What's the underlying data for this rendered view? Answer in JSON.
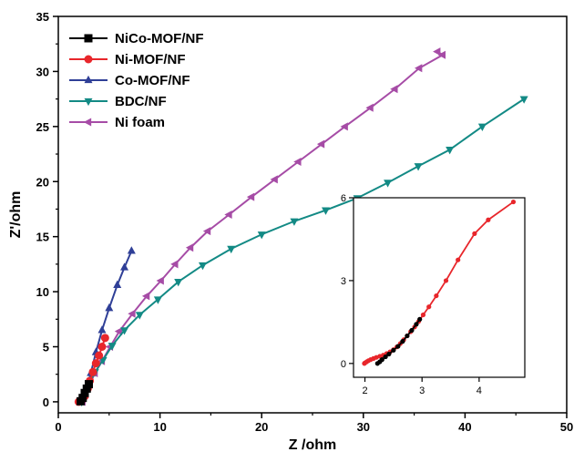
{
  "chart_data": {
    "type": "line",
    "xlabel": "Z /ohm",
    "ylabel": "Z'/ohm",
    "xlim": [
      0,
      50
    ],
    "ylim": [
      -1,
      35
    ],
    "xticks": [
      0,
      10,
      20,
      30,
      40,
      50
    ],
    "yticks": [
      0,
      5,
      10,
      15,
      20,
      25,
      30,
      35
    ],
    "legend_position": "top-left",
    "series": [
      {
        "name": "NiCo-MOF/NF",
        "color": "#000000",
        "marker": "square",
        "x": [
          2.2,
          2.4,
          2.6,
          2.8,
          3.0
        ],
        "y": [
          0.05,
          0.35,
          0.8,
          1.2,
          1.6
        ]
      },
      {
        "name": "Ni-MOF/NF",
        "color": "#e8262b",
        "marker": "circle",
        "x": [
          2.0,
          2.3,
          2.6,
          2.9,
          3.1,
          3.4,
          3.7,
          4.0,
          4.3,
          4.6
        ],
        "y": [
          0.0,
          0.15,
          0.5,
          1.2,
          1.9,
          2.7,
          3.5,
          4.2,
          5.0,
          5.8
        ]
      },
      {
        "name": "Co-MOF/NF",
        "color": "#2f3f97",
        "marker": "triangle-up",
        "x": [
          2.1,
          2.4,
          2.8,
          3.2,
          3.7,
          4.3,
          5.0,
          5.8,
          6.5,
          7.2
        ],
        "y": [
          0.0,
          0.4,
          1.3,
          2.6,
          4.5,
          6.5,
          8.5,
          10.6,
          12.2,
          13.7
        ]
      },
      {
        "name": "BDC/NF",
        "color": "#138a85",
        "marker": "triangle-down",
        "x": [
          2.3,
          2.6,
          3.0,
          3.6,
          4.4,
          5.3,
          6.5,
          8.0,
          9.8,
          11.8,
          14.2,
          17.0,
          20.0,
          23.2,
          26.3,
          29.4,
          32.4,
          35.4,
          38.5,
          41.7,
          45.8
        ],
        "y": [
          0.0,
          0.7,
          1.6,
          2.7,
          3.8,
          5.1,
          6.5,
          7.9,
          9.3,
          10.9,
          12.4,
          13.9,
          15.2,
          16.4,
          17.4,
          18.5,
          19.9,
          21.4,
          22.9,
          25.0,
          27.5
        ]
      },
      {
        "name": "Ni foam",
        "color": "#a64ca6",
        "marker": "triangle-left",
        "x": [
          2.4,
          2.7,
          3.1,
          3.6,
          4.3,
          5.1,
          6.0,
          7.3,
          8.7,
          10.1,
          11.5,
          13.0,
          14.7,
          16.8,
          19.0,
          21.3,
          23.6,
          25.9,
          28.2,
          30.7,
          33.1,
          35.5,
          37.8,
          37.3
        ],
        "y": [
          0.0,
          0.7,
          1.6,
          2.6,
          3.7,
          5.0,
          6.4,
          8.0,
          9.6,
          11.0,
          12.5,
          14.0,
          15.5,
          17.0,
          18.6,
          20.2,
          21.8,
          23.4,
          25.0,
          26.7,
          28.4,
          30.3,
          31.5,
          31.8
        ]
      }
    ],
    "inset": {
      "xlim": [
        1.8,
        4.8
      ],
      "ylim": [
        -0.5,
        6
      ],
      "xticks": [
        2,
        3,
        4
      ],
      "yticks": [
        0,
        3,
        6
      ],
      "series": [
        {
          "name": "NiCo-MOF/NF",
          "color": "#000000",
          "x": [
            2.22,
            2.26,
            2.3,
            2.36,
            2.42,
            2.5,
            2.58,
            2.66,
            2.74,
            2.82,
            2.9,
            2.96
          ],
          "y": [
            0.0,
            0.06,
            0.14,
            0.24,
            0.34,
            0.48,
            0.62,
            0.8,
            1.0,
            1.2,
            1.42,
            1.6
          ]
        },
        {
          "name": "Ni-MOF/NF",
          "color": "#e8262b",
          "x": [
            1.99,
            2.0,
            2.03,
            2.06,
            2.1,
            2.15,
            2.2,
            2.26,
            2.32,
            2.38,
            2.44,
            2.5,
            2.56,
            2.62,
            2.68,
            2.74,
            2.8,
            2.87,
            2.94,
            3.02,
            3.12,
            3.25,
            3.42,
            3.63,
            3.92,
            4.16,
            4.6
          ],
          "y": [
            0.0,
            0.02,
            0.06,
            0.1,
            0.14,
            0.18,
            0.22,
            0.26,
            0.3,
            0.36,
            0.42,
            0.5,
            0.6,
            0.72,
            0.86,
            1.0,
            1.15,
            1.32,
            1.52,
            1.76,
            2.05,
            2.45,
            3.0,
            3.75,
            4.7,
            5.2,
            5.85
          ]
        }
      ]
    }
  }
}
